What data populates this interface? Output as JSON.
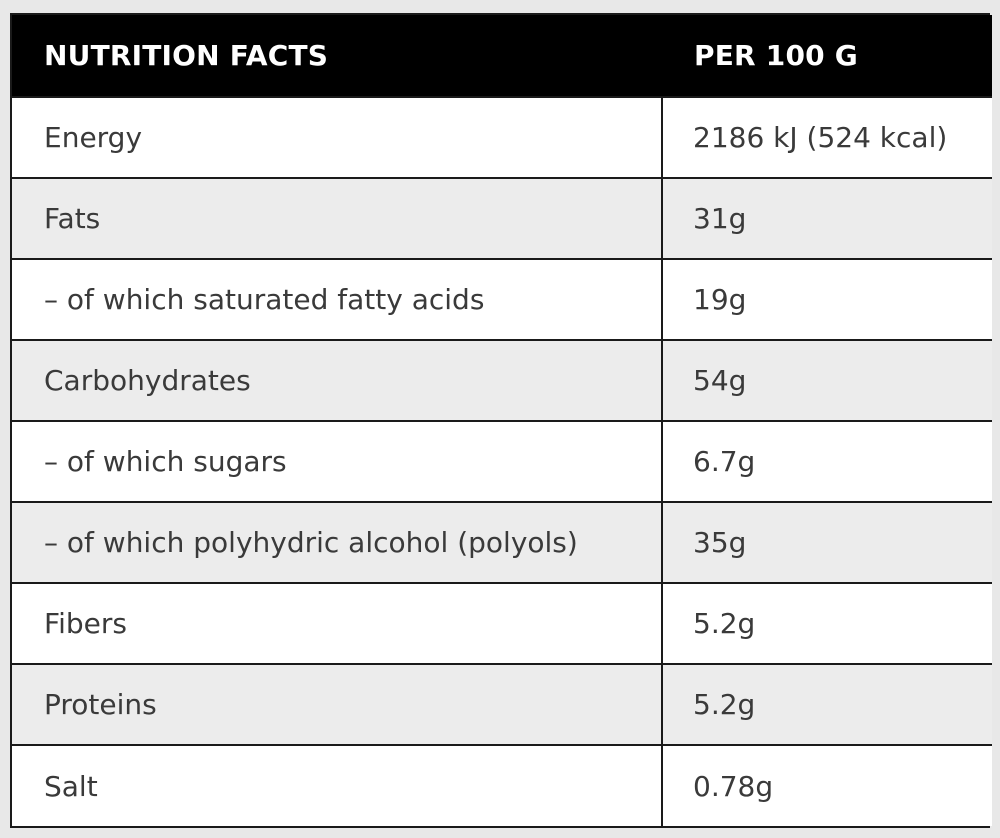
{
  "header": {
    "col1": "NUTRITION FACTS",
    "col2": "PER 100 G"
  },
  "rows": [
    {
      "name": "Energy",
      "value": "2186 kJ (524 kcal)"
    },
    {
      "name": "Fats",
      "value": "31g"
    },
    {
      "name": "– of which saturated fatty acids",
      "value": "19g"
    },
    {
      "name": "Carbohydrates",
      "value": "54g"
    },
    {
      "name": "– of which sugars",
      "value": "6.7g"
    },
    {
      "name": "– of which polyhydric alcohol (polyols)",
      "value": "35g"
    },
    {
      "name": "Fibers",
      "value": "5.2g"
    },
    {
      "name": "Proteins",
      "value": "5.2g"
    },
    {
      "name": "Salt",
      "value": "0.78g"
    }
  ],
  "colors": {
    "header_bg": "#000000",
    "header_text": "#ffffff",
    "row_alt_bg": "#ececec",
    "text": "#3a3a3a"
  }
}
